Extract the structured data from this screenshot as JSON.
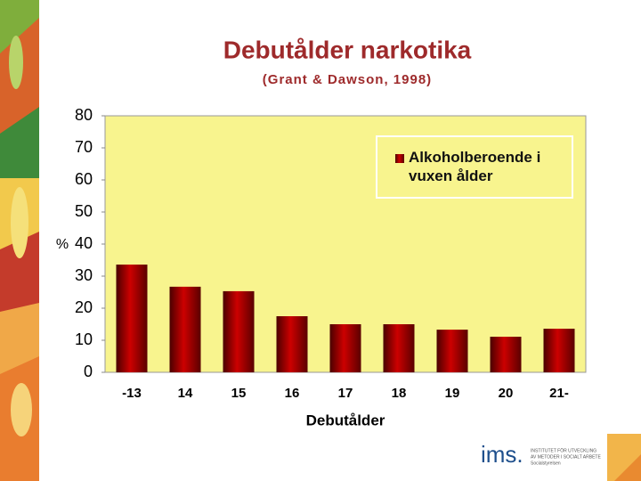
{
  "chart_data": {
    "type": "bar",
    "title": "Debutålder narkotika",
    "subtitle": "(Grant & Dawson, 1998)",
    "y_label": "%",
    "x_label": "Debutålder",
    "categories": [
      "-13",
      "14",
      "15",
      "16",
      "17",
      "18",
      "19",
      "20",
      "21-"
    ],
    "series": [
      {
        "name": "Alkoholberoende i vuxen ålder",
        "color": "#cc0000",
        "values": [
          33.6,
          26.7,
          25.3,
          17.5,
          15,
          15,
          13.3,
          11.1,
          13.6
        ]
      }
    ],
    "ylim": [
      0,
      80
    ],
    "yticks": [
      0,
      10,
      20,
      30,
      40,
      50,
      60,
      70,
      80
    ],
    "grid": false,
    "legend": "top-right",
    "background": "#f8f48e"
  },
  "logo": {
    "name": "ims.",
    "lines": [
      "INSTITUTET FÖR UTVECKLING",
      "AV METODER I SOCIALT ARBETE",
      "Socialstyrelsen"
    ]
  }
}
